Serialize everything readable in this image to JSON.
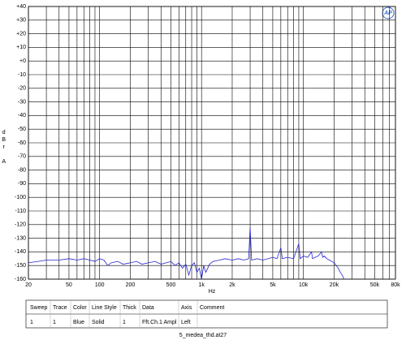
{
  "chart_data": {
    "type": "line",
    "xscale": "log",
    "xlabel": "Hz",
    "ylabel": "dBr A",
    "logo": "AP",
    "xlim": [
      20,
      80000
    ],
    "ylim": [
      -160,
      40
    ],
    "xticks": [
      20,
      50,
      100,
      200,
      500,
      {
        "value": 1000,
        "label": "1k"
      },
      {
        "value": 2000,
        "label": "2k"
      },
      {
        "value": 5000,
        "label": "5k"
      },
      {
        "value": 10000,
        "label": "10k"
      },
      {
        "value": 20000,
        "label": "20k"
      },
      {
        "value": 50000,
        "label": "50k"
      },
      {
        "value": 80000,
        "label": "80k"
      }
    ],
    "xgrid": [
      30,
      40,
      60,
      70,
      80,
      90,
      300,
      400,
      600,
      700,
      800,
      900,
      3000,
      4000,
      6000,
      7000,
      8000,
      9000,
      30000,
      40000,
      60000,
      70000
    ],
    "yticks": [
      {
        "value": 40,
        "label": "+40"
      },
      {
        "value": 30,
        "label": "+30"
      },
      {
        "value": 20,
        "label": "+20"
      },
      {
        "value": 10,
        "label": "+10"
      },
      {
        "value": 0,
        "label": "+0"
      },
      -10,
      -20,
      -30,
      -40,
      -50,
      -60,
      -70,
      -80,
      -90,
      -100,
      -110,
      -120,
      -130,
      -140,
      -150,
      -160
    ],
    "grid": true,
    "x": [
      20,
      25,
      30,
      40,
      50,
      60,
      70,
      80,
      90,
      100,
      110,
      120,
      130,
      150,
      170,
      200,
      230,
      260,
      300,
      350,
      400,
      450,
      500,
      550,
      600,
      650,
      700,
      750,
      800,
      850,
      900,
      950,
      1000,
      1050,
      1100,
      1200,
      1300,
      1500,
      1700,
      2000,
      2300,
      2600,
      2900,
      3000,
      3100,
      3500,
      4000,
      4500,
      5000,
      5500,
      6000,
      6200,
      7000,
      8000,
      9000,
      9300,
      10000,
      11000,
      12000,
      12300,
      13000,
      14000,
      15000,
      15500,
      16000,
      17000,
      18000,
      19000,
      20000,
      21000,
      22000,
      23000,
      24000,
      25000
    ],
    "series": [
      {
        "color": "#2424d0",
        "values": [
          -148,
          -147,
          -146,
          -146,
          -145,
          -146,
          -145,
          -146,
          -147,
          -145,
          -146,
          -150,
          -148,
          -147,
          -149,
          -148,
          -147,
          -149,
          -148,
          -147,
          -149,
          -148,
          -147,
          -150,
          -148,
          -152,
          -149,
          -157,
          -150,
          -148,
          -155,
          -152,
          -160,
          -150,
          -155,
          -149,
          -147,
          -146,
          -145,
          -146,
          -145,
          -146,
          -145,
          -122,
          -146,
          -145,
          -146,
          -145,
          -144,
          -145,
          -137,
          -145,
          -144,
          -145,
          -134,
          -145,
          -143,
          -144,
          -140,
          -145,
          -144,
          -143,
          -140,
          -144,
          -143,
          -145,
          -146,
          -147,
          -148,
          -150,
          -152,
          -155,
          -157,
          -160
        ]
      }
    ]
  },
  "table": {
    "columns": [
      "Sweep",
      "Trace",
      "Color",
      "Line Style",
      "Thick",
      "Data",
      "Axis",
      "Comment"
    ],
    "rows": [
      [
        1,
        1,
        "Blue",
        "Solid",
        1,
        "Fft.Ch.1 Ampl",
        "Left"
      ]
    ]
  },
  "footer": "5_medea_thd.at27"
}
